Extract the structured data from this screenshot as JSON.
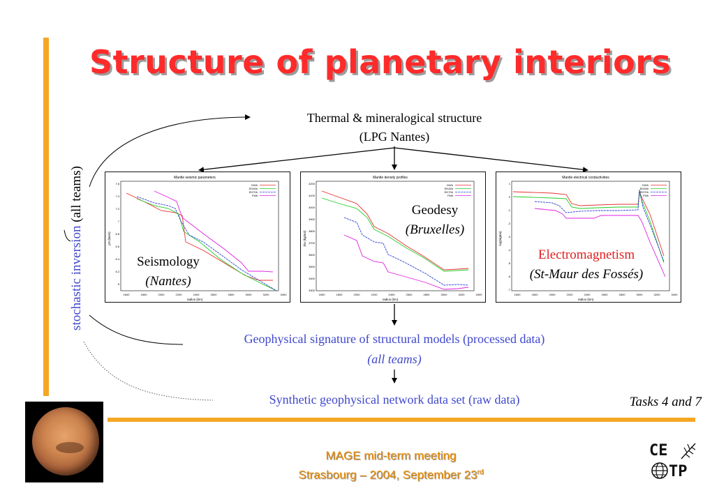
{
  "title": "Structure of planetary interiors",
  "top_node": {
    "line1": "Thermal & mineralogical structure",
    "line2": "(LPG Nantes)"
  },
  "plots": {
    "seismology": {
      "title": "Mantle seismic parameters",
      "xlabel": "radius (km)",
      "ylabel": "pS (km/s)",
      "label": "Seismology",
      "sub": "(Nantes)"
    },
    "geodesy": {
      "title": "Mantle density profiles",
      "xlabel": "radius (km)",
      "ylabel": "rho (kg/m3)",
      "label": "Geodesy",
      "sub": "(Bruxelles)"
    },
    "em": {
      "title": "Mantle electrical conductivities",
      "xlabel": "radius (km)",
      "ylabel": "log(sigma)",
      "label": "Electromagnetism",
      "sub": "(St-Maur des Fossés)"
    }
  },
  "legend": [
    "DWh",
    "EH45h",
    "EH70h",
    "FMh"
  ],
  "signature": {
    "line1": "Geophysical signature of structural models (processed data)",
    "line2": "(all teams)"
  },
  "synthetic": "Synthetic geophysical network data set (raw data)",
  "tasks": "Tasks 4 and 7",
  "side_label": {
    "blue": "stochastic inversion",
    "black": "(all teams)"
  },
  "footer": {
    "line1": "MAGE mid-term meeting",
    "line2_prefix": "Strasbourg – 2004, September 23",
    "line2_sup": "rd"
  },
  "logo": {
    "line1": "CE",
    "line2": "TP"
  },
  "colors": {
    "title": "#ff2a2a",
    "accent_bar": "#f5a623",
    "blue_text": "#3f48cc",
    "red_text": "#e02020",
    "footer": "#e88a00"
  }
}
